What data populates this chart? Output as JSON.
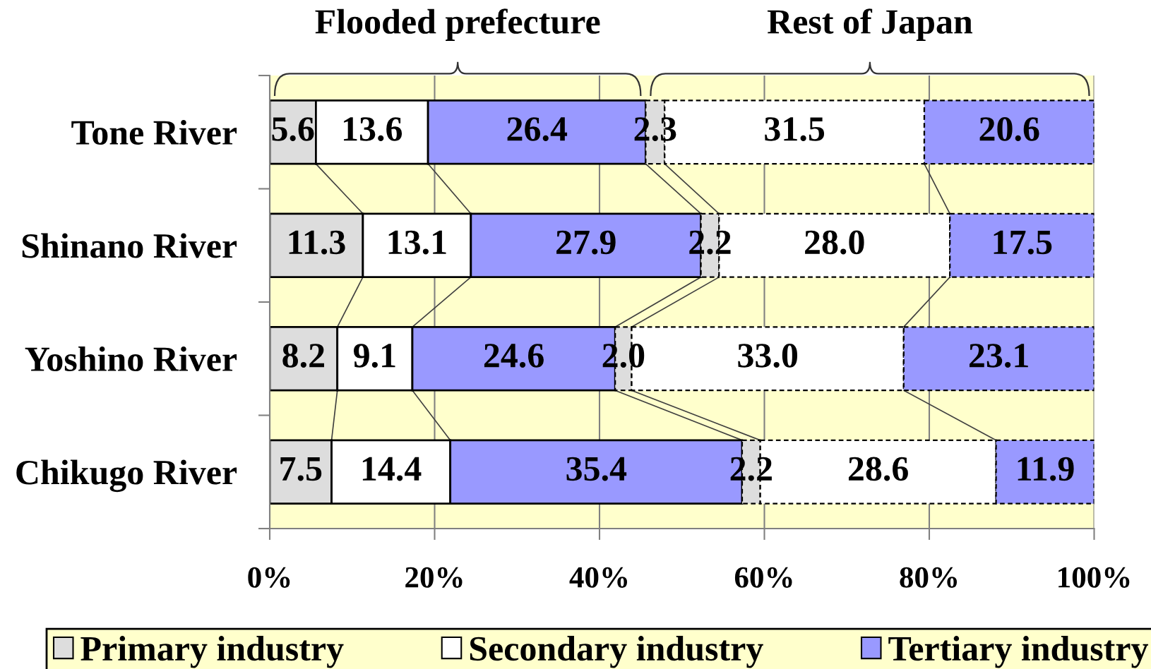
{
  "chart_data": {
    "type": "bar",
    "orientation": "horizontal",
    "stacked": true,
    "annotations": [
      "Flooded prefecture",
      "Rest of Japan"
    ],
    "categories": [
      "Tone River",
      "Shinano River",
      "Yoshino River",
      "Chikugo River"
    ],
    "series": [
      {
        "name": "Primary industry",
        "color": "#dddddd",
        "line_style": "solid",
        "values": [
          5.6,
          11.3,
          8.2,
          7.5
        ],
        "value_labels": [
          "5.6",
          "11.3",
          "8.2",
          "7.5"
        ]
      },
      {
        "name": "Secondary industry",
        "color": "#ffffff",
        "line_style": "solid",
        "values": [
          13.6,
          13.1,
          9.1,
          14.4
        ],
        "value_labels": [
          "13.6",
          "13.1",
          "9.1",
          "14.4"
        ]
      },
      {
        "name": "Tertiary industry",
        "color": "#9999ff",
        "line_style": "solid",
        "values": [
          26.4,
          27.9,
          24.6,
          35.4
        ],
        "value_labels": [
          "26.4",
          "27.9",
          "24.6",
          "35.4"
        ]
      },
      {
        "color": "#dddddd",
        "line_style": "dashed",
        "values": [
          2.3,
          2.2,
          2.0,
          2.2
        ],
        "value_labels": [
          "2.3",
          "2.2",
          "2.0",
          "2.2"
        ]
      },
      {
        "color": "#ffffff",
        "line_style": "dashed",
        "values": [
          31.5,
          28.0,
          33.0,
          28.6
        ],
        "value_labels": [
          "31.5",
          "28.0",
          "33.0",
          "28.6"
        ]
      },
      {
        "color": "#9999ff",
        "line_style": "dashed",
        "values": [
          20.6,
          17.5,
          23.1,
          11.9
        ],
        "value_labels": [
          "20.6",
          "17.5",
          "23.1",
          "11.9"
        ]
      }
    ],
    "xlim": [
      0,
      100
    ],
    "xticks": [
      {
        "value": 0,
        "label": "0%"
      },
      {
        "value": 20,
        "label": "20%"
      },
      {
        "value": 40,
        "label": "40%"
      },
      {
        "value": 60,
        "label": "60%"
      },
      {
        "value": 80,
        "label": "80%"
      },
      {
        "value": 100,
        "label": "100%"
      }
    ],
    "grid": "x",
    "legend": "bottom"
  }
}
